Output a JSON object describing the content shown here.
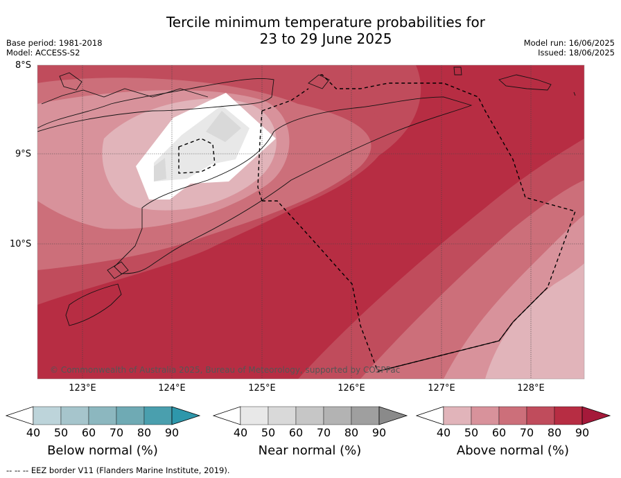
{
  "title_line1": "Tercile minimum temperature probabilities for",
  "title_line2": "23 to 29 June 2025",
  "meta_left": {
    "base_period": "Base period: 1981-2018",
    "model": "Model: ACCESS-S2"
  },
  "meta_right": {
    "model_run": "Model run: 16/06/2025",
    "issued": "Issued: 18/06/2025"
  },
  "lat_labels": [
    "8°S",
    "9°S",
    "10°S"
  ],
  "lon_labels": [
    "123°E",
    "124°E",
    "125°E",
    "126°E",
    "127°E",
    "128°E"
  ],
  "credit": "© Commonwealth of Australia 2025, Bureau of Meteorology, supported by COSPPac",
  "colorbars": [
    {
      "label": "Below normal (%)",
      "ticks": [
        "40",
        "50",
        "60",
        "70",
        "80",
        "90"
      ],
      "colors": [
        "#bdd4da",
        "#a6c5cc",
        "#8cb7bf",
        "#6faab4",
        "#4a9fae",
        "#2e97ab"
      ]
    },
    {
      "label": "Near normal (%)",
      "ticks": [
        "40",
        "50",
        "60",
        "70",
        "80",
        "90"
      ],
      "colors": [
        "#e8e8e8",
        "#d9d9d9",
        "#c6c6c6",
        "#b3b3b3",
        "#9f9f9f",
        "#8a8a8a"
      ]
    },
    {
      "label": "Above normal (%)",
      "ticks": [
        "40",
        "50",
        "60",
        "70",
        "80",
        "90"
      ],
      "colors": [
        "#e1b4ba",
        "#d8929b",
        "#cc6f7a",
        "#c04c5c",
        "#b72d43",
        "#a5193a"
      ]
    }
  ],
  "footer": "--  --  -- EEZ border V11 (Flanders Marine Institute, 2019)."
}
